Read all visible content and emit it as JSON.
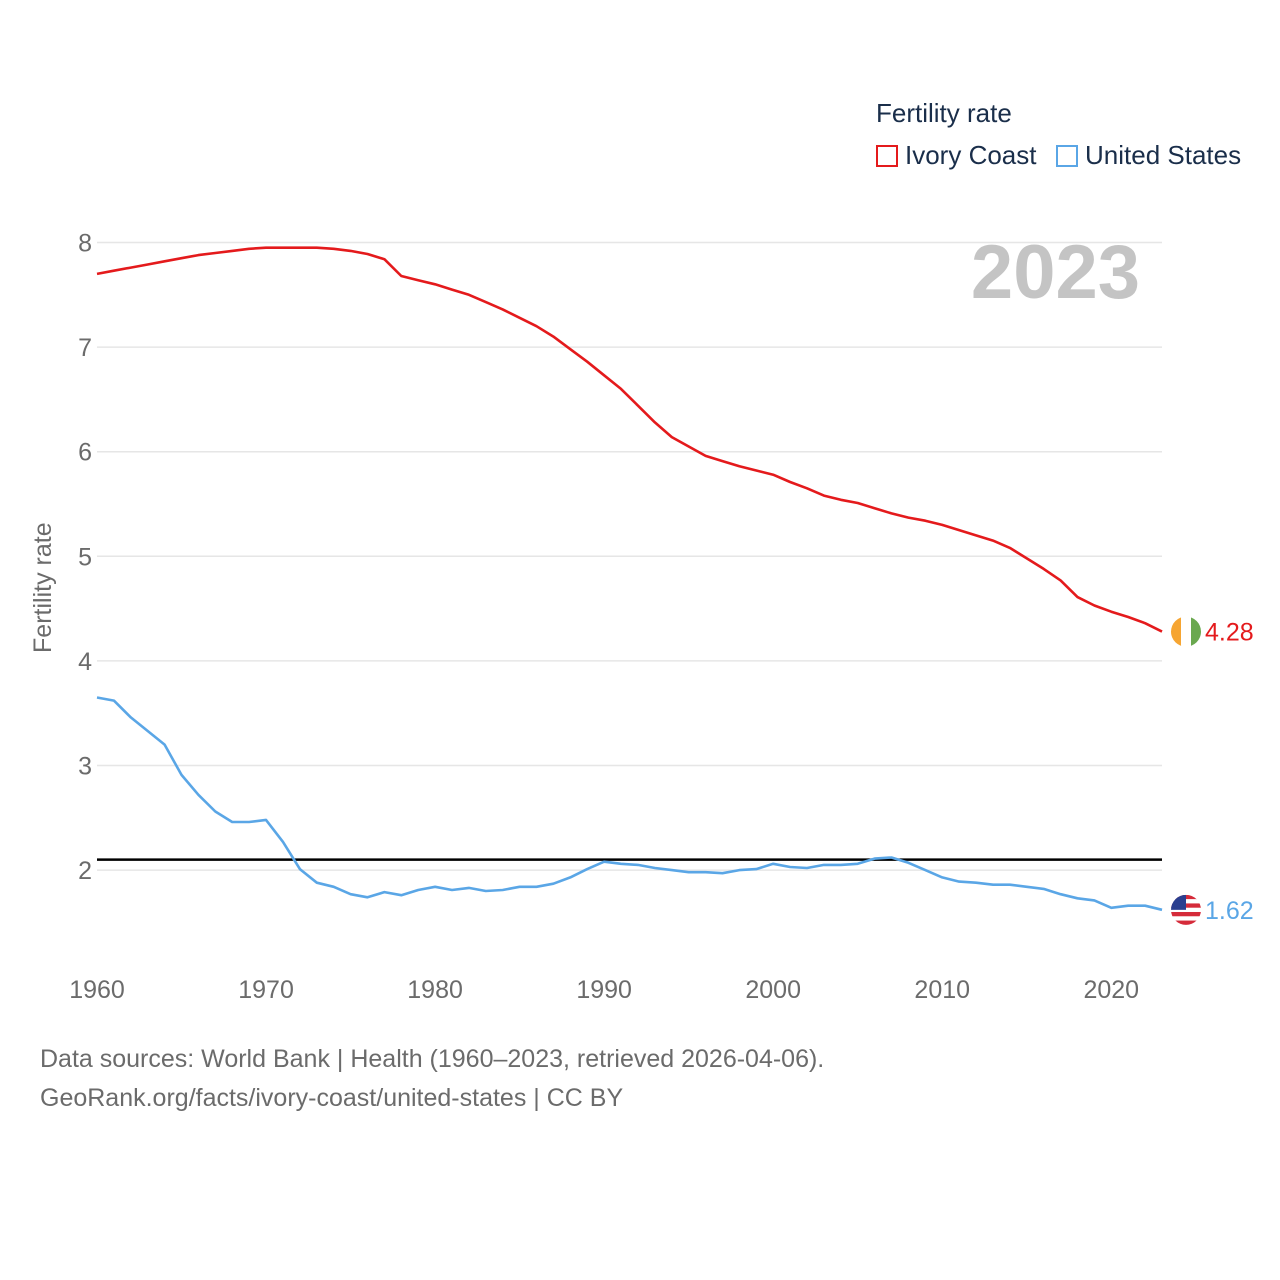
{
  "legend": {
    "title": "Fertility rate",
    "items": [
      {
        "label": "Ivory Coast",
        "color": "#e41a1c"
      },
      {
        "label": "United States",
        "color": "#5aa6e6"
      }
    ]
  },
  "footer": {
    "line1": "Data sources: World Bank | Health (1960–2023, retrieved 2026-04-06).",
    "line2": "GeoRank.org/facts/ivory-coast/united-states | CC BY"
  },
  "chart_data": {
    "type": "line",
    "title": "Fertility rate",
    "ylabel": "Fertility rate",
    "xlabel": "",
    "year_label": "2023",
    "xlim": [
      1960,
      2023
    ],
    "ylim": [
      1.3,
      8.3
    ],
    "xticks": [
      1960,
      1970,
      1980,
      1990,
      2000,
      2010,
      2020
    ],
    "yticks": [
      2,
      3,
      4,
      5,
      6,
      7,
      8
    ],
    "reference_line": {
      "y": 2.1,
      "color": "#000000"
    },
    "x": [
      1960,
      1961,
      1962,
      1963,
      1964,
      1965,
      1966,
      1967,
      1968,
      1969,
      1970,
      1971,
      1972,
      1973,
      1974,
      1975,
      1976,
      1977,
      1978,
      1979,
      1980,
      1981,
      1982,
      1983,
      1984,
      1985,
      1986,
      1987,
      1988,
      1989,
      1990,
      1991,
      1992,
      1993,
      1994,
      1995,
      1996,
      1997,
      1998,
      1999,
      2000,
      2001,
      2002,
      2003,
      2004,
      2005,
      2006,
      2007,
      2008,
      2009,
      2010,
      2011,
      2012,
      2013,
      2014,
      2015,
      2016,
      2017,
      2018,
      2019,
      2020,
      2021,
      2022,
      2023
    ],
    "series": [
      {
        "name": "Ivory Coast",
        "color": "#e41a1c",
        "end_label": "4.28",
        "values": [
          7.7,
          7.73,
          7.76,
          7.79,
          7.82,
          7.85,
          7.88,
          7.9,
          7.92,
          7.94,
          7.95,
          7.95,
          7.95,
          7.95,
          7.94,
          7.92,
          7.89,
          7.84,
          7.68,
          7.64,
          7.6,
          7.55,
          7.5,
          7.43,
          7.36,
          7.28,
          7.2,
          7.1,
          6.98,
          6.86,
          6.73,
          6.6,
          6.44,
          6.28,
          6.14,
          6.05,
          5.96,
          5.91,
          5.86,
          5.82,
          5.78,
          5.71,
          5.65,
          5.58,
          5.54,
          5.51,
          5.46,
          5.41,
          5.37,
          5.34,
          5.3,
          5.25,
          5.2,
          5.15,
          5.08,
          4.98,
          4.88,
          4.77,
          4.61,
          4.53,
          4.47,
          4.42,
          4.36,
          4.28
        ]
      },
      {
        "name": "United States",
        "color": "#5aa6e6",
        "end_label": "1.62",
        "values": [
          3.65,
          3.62,
          3.46,
          3.33,
          3.2,
          2.91,
          2.72,
          2.56,
          2.46,
          2.46,
          2.48,
          2.27,
          2.01,
          1.88,
          1.84,
          1.77,
          1.74,
          1.79,
          1.76,
          1.81,
          1.84,
          1.81,
          1.83,
          1.8,
          1.81,
          1.84,
          1.84,
          1.87,
          1.93,
          2.01,
          2.08,
          2.06,
          2.05,
          2.02,
          2.0,
          1.98,
          1.98,
          1.97,
          2.0,
          2.01,
          2.06,
          2.03,
          2.02,
          2.05,
          2.05,
          2.06,
          2.11,
          2.12,
          2.07,
          2.0,
          1.93,
          1.89,
          1.88,
          1.86,
          1.86,
          1.84,
          1.82,
          1.77,
          1.73,
          1.71,
          1.64,
          1.66,
          1.66,
          1.62
        ]
      }
    ]
  }
}
